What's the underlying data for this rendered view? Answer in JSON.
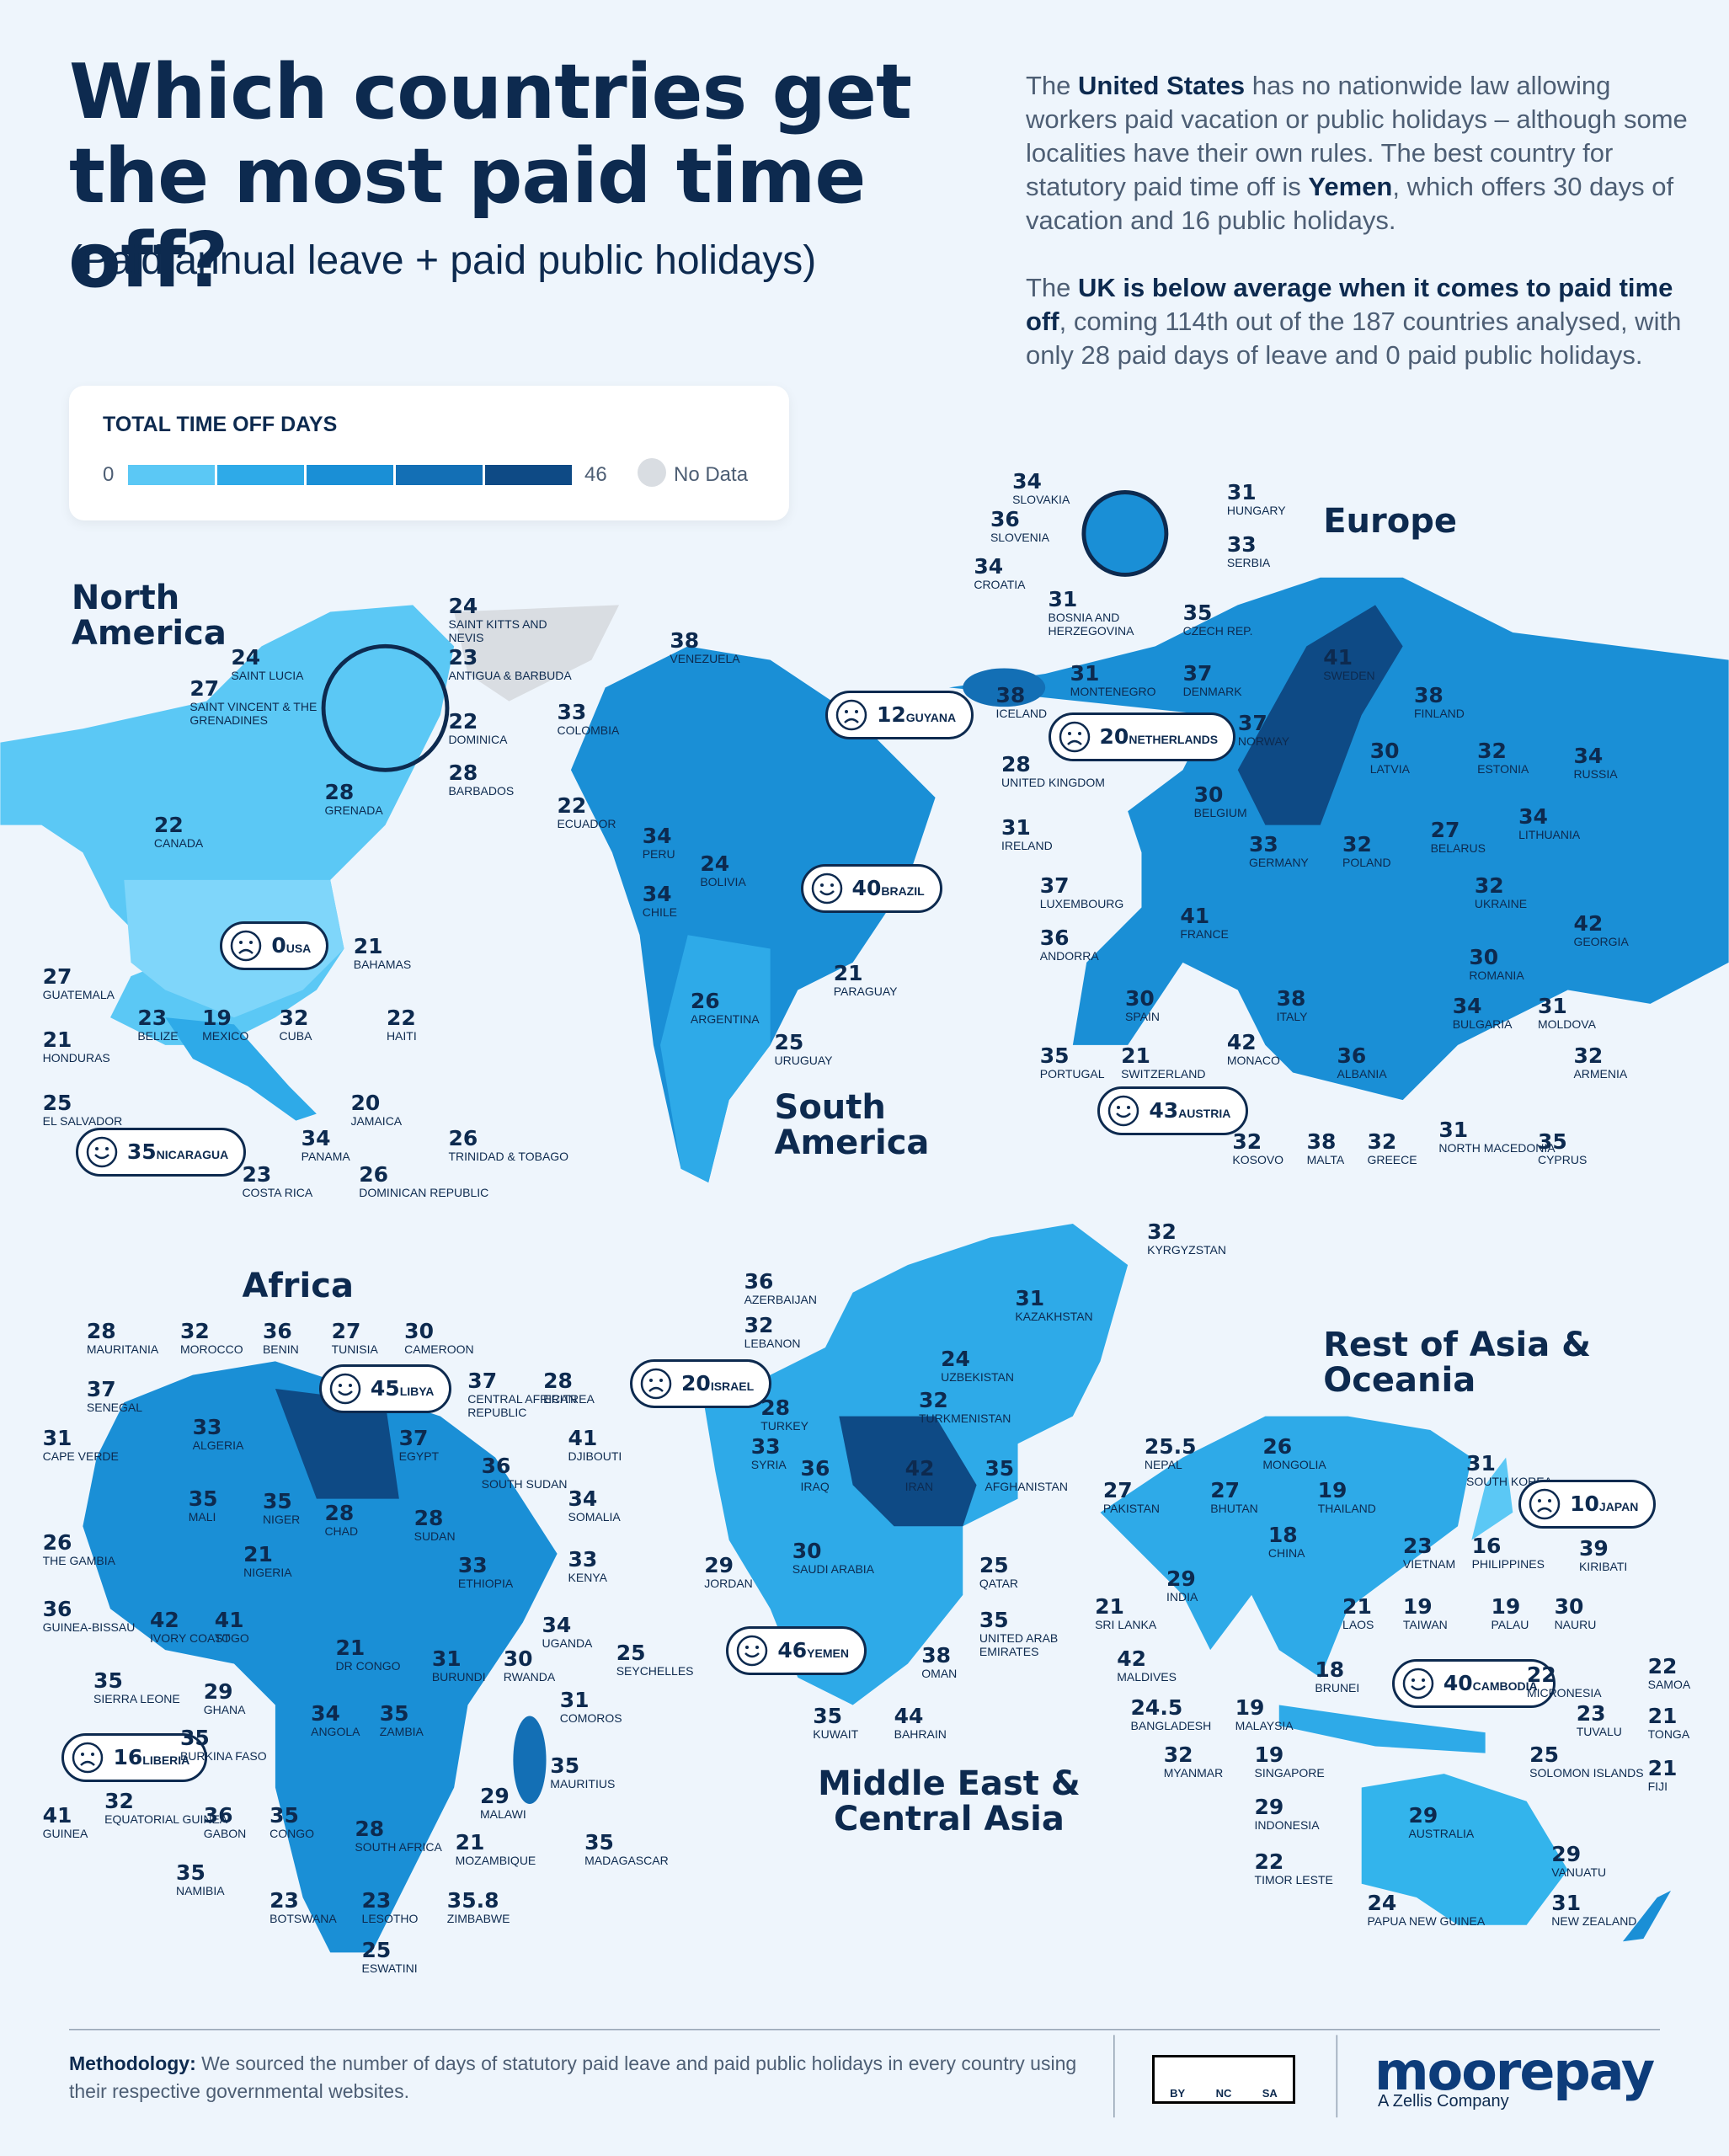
{
  "header": {
    "title": "Which countries get the most paid time off?",
    "subtitle": "(Paid annual leave + paid public holidays)"
  },
  "intro": [
    [
      {
        "text": "The "
      },
      {
        "text": "United States",
        "bold": true
      },
      {
        "text": " has no nationwide law allowing workers paid vacation or public holidays – although some localities have their own rules. The best country for statutory paid time off is "
      },
      {
        "text": "Yemen",
        "bold": true
      },
      {
        "text": ", which offers 30 days of vacation and 16 public holidays."
      }
    ],
    [
      {
        "text": "The "
      },
      {
        "text": "UK is below average when it comes to paid time off",
        "bold": true
      },
      {
        "text": ", coming 114th out of the 187 countries analysed, with only 28 paid days of leave and 0 paid public holidays."
      }
    ]
  ],
  "legend": {
    "title": "TOTAL TIME OFF DAYS",
    "min": 0,
    "max": 46,
    "colors": [
      "#5bc8f5",
      "#2eaae8",
      "#1a8fd6",
      "#136fb5",
      "#0e4a85"
    ],
    "no_data": "No Data"
  },
  "regions": [
    {
      "name": "North America",
      "countries": [
        {
          "value": 24,
          "name": "SAINT KITTS AND NEVIS"
        },
        {
          "value": 23,
          "name": "ANTIGUA & BARBUDA"
        },
        {
          "value": 24,
          "name": "SAINT LUCIA"
        },
        {
          "value": 27,
          "name": "SAINT VINCENT & THE GRENADINES"
        },
        {
          "value": 22,
          "name": "DOMINICA"
        },
        {
          "value": 28,
          "name": "BARBADOS"
        },
        {
          "value": 28,
          "name": "GRENADA"
        },
        {
          "value": 22,
          "name": "CANADA"
        },
        {
          "value": 0,
          "name": "USA",
          "badge": "sad"
        },
        {
          "value": 21,
          "name": "BAHAMAS"
        },
        {
          "value": 27,
          "name": "GUATEMALA"
        },
        {
          "value": 23,
          "name": "BELIZE"
        },
        {
          "value": 19,
          "name": "MEXICO"
        },
        {
          "value": 32,
          "name": "CUBA"
        },
        {
          "value": 22,
          "name": "HAITI"
        },
        {
          "value": 21,
          "name": "HONDURAS"
        },
        {
          "value": 25,
          "name": "EL SALVADOR"
        },
        {
          "value": 20,
          "name": "JAMAICA"
        },
        {
          "value": 34,
          "name": "PANAMA"
        },
        {
          "value": 26,
          "name": "TRINIDAD & TOBAGO"
        },
        {
          "value": 35,
          "name": "NICARAGUA",
          "badge": "happy"
        },
        {
          "value": 23,
          "name": "COSTA RICA"
        },
        {
          "value": 26,
          "name": "DOMINICAN REPUBLIC"
        }
      ]
    },
    {
      "name": "South America",
      "countries": [
        {
          "value": 38,
          "name": "VENEZUELA"
        },
        {
          "value": 33,
          "name": "COLOMBIA"
        },
        {
          "value": 12,
          "name": "GUYANA",
          "badge": "sad"
        },
        {
          "value": 22,
          "name": "ECUADOR"
        },
        {
          "value": 34,
          "name": "PERU"
        },
        {
          "value": 24,
          "name": "BOLIVIA"
        },
        {
          "value": 40,
          "name": "BRAZIL",
          "badge": "happy"
        },
        {
          "value": 34,
          "name": "CHILE"
        },
        {
          "value": 21,
          "name": "PARAGUAY"
        },
        {
          "value": 26,
          "name": "ARGENTINA"
        },
        {
          "value": 25,
          "name": "URUGUAY"
        }
      ]
    },
    {
      "name": "Europe",
      "countries": [
        {
          "value": 34,
          "name": "SLOVAKIA"
        },
        {
          "value": 36,
          "name": "SLOVENIA"
        },
        {
          "value": 34,
          "name": "CROATIA"
        },
        {
          "value": 31,
          "name": "BOSNIA AND HERZEGOVINA"
        },
        {
          "value": 31,
          "name": "HUNGARY"
        },
        {
          "value": 33,
          "name": "SERBIA"
        },
        {
          "value": 35,
          "name": "CZECH REP."
        },
        {
          "value": 31,
          "name": "MONTENEGRO"
        },
        {
          "value": 37,
          "name": "DENMARK"
        },
        {
          "value": 41,
          "name": "SWEDEN"
        },
        {
          "value": 38,
          "name": "FINLAND"
        },
        {
          "value": 38,
          "name": "ICELAND"
        },
        {
          "value": 20,
          "name": "NETHERLANDS",
          "badge": "sad"
        },
        {
          "value": 37,
          "name": "NORWAY"
        },
        {
          "value": 30,
          "name": "LATVIA"
        },
        {
          "value": 32,
          "name": "ESTONIA"
        },
        {
          "value": 34,
          "name": "RUSSIA"
        },
        {
          "value": 28,
          "name": "UNITED KINGDOM"
        },
        {
          "value": 30,
          "name": "BELGIUM"
        },
        {
          "value": 31,
          "name": "IRELAND"
        },
        {
          "value": 33,
          "name": "GERMANY"
        },
        {
          "value": 32,
          "name": "POLAND"
        },
        {
          "value": 27,
          "name": "BELARUS"
        },
        {
          "value": 34,
          "name": "LITHUANIA"
        },
        {
          "value": 37,
          "name": "LUXEMBOURG"
        },
        {
          "value": 32,
          "name": "UKRAINE"
        },
        {
          "value": 41,
          "name": "FRANCE"
        },
        {
          "value": 42,
          "name": "GEORGIA"
        },
        {
          "value": 36,
          "name": "ANDORRA"
        },
        {
          "value": 30,
          "name": "ROMANIA"
        },
        {
          "value": 30,
          "name": "SPAIN"
        },
        {
          "value": 38,
          "name": "ITALY"
        },
        {
          "value": 34,
          "name": "BULGARIA"
        },
        {
          "value": 31,
          "name": "MOLDOVA"
        },
        {
          "value": 42,
          "name": "MONACO"
        },
        {
          "value": 35,
          "name": "PORTUGAL"
        },
        {
          "value": 21,
          "name": "SWITZERLAND"
        },
        {
          "value": 36,
          "name": "ALBANIA"
        },
        {
          "value": 32,
          "name": "ARMENIA"
        },
        {
          "value": 43,
          "name": "AUSTRIA",
          "badge": "happy"
        },
        {
          "value": 31,
          "name": "NORTH MACEDONIA"
        },
        {
          "value": 32,
          "name": "KOSOVO"
        },
        {
          "value": 38,
          "name": "MALTA"
        },
        {
          "value": 32,
          "name": "GREECE"
        },
        {
          "value": 35,
          "name": "CYPRUS"
        }
      ]
    },
    {
      "name": "Africa",
      "countries": [
        {
          "value": 28,
          "name": "MAURITANIA"
        },
        {
          "value": 32,
          "name": "MOROCCO"
        },
        {
          "value": 36,
          "name": "BENIN"
        },
        {
          "value": 27,
          "name": "TUNISIA"
        },
        {
          "value": 30,
          "name": "CAMEROON"
        },
        {
          "value": 37,
          "name": "SENEGAL"
        },
        {
          "value": 45,
          "name": "LIBYA",
          "badge": "happy"
        },
        {
          "value": 37,
          "name": "CENTRAL AFRICAN REPUBLIC"
        },
        {
          "value": 28,
          "name": "ERITREA"
        },
        {
          "value": 33,
          "name": "ALGERIA"
        },
        {
          "value": 31,
          "name": "CAPE VERDE"
        },
        {
          "value": 37,
          "name": "EGYPT"
        },
        {
          "value": 41,
          "name": "DJIBOUTI"
        },
        {
          "value": 36,
          "name": "SOUTH SUDAN"
        },
        {
          "value": 35,
          "name": "MALI"
        },
        {
          "value": 35,
          "name": "NIGER"
        },
        {
          "value": 34,
          "name": "SOMALIA"
        },
        {
          "value": 28,
          "name": "CHAD"
        },
        {
          "value": 28,
          "name": "SUDAN"
        },
        {
          "value": 26,
          "name": "THE GAMBIA"
        },
        {
          "value": 21,
          "name": "NIGERIA"
        },
        {
          "value": 33,
          "name": "KENYA"
        },
        {
          "value": 33,
          "name": "ETHIOPIA"
        },
        {
          "value": 36,
          "name": "GUINEA-BISSAU"
        },
        {
          "value": 42,
          "name": "IVORY COAST"
        },
        {
          "value": 41,
          "name": "TOGO"
        },
        {
          "value": 34,
          "name": "UGANDA"
        },
        {
          "value": 21,
          "name": "DR CONGO"
        },
        {
          "value": 31,
          "name": "BURUNDI"
        },
        {
          "value": 30,
          "name": "RWANDA"
        },
        {
          "value": 25,
          "name": "SEYCHELLES"
        },
        {
          "value": 35,
          "name": "SIERRA LEONE"
        },
        {
          "value": 29,
          "name": "GHANA"
        },
        {
          "value": 31,
          "name": "COMOROS"
        },
        {
          "value": 34,
          "name": "ANGOLA"
        },
        {
          "value": 35,
          "name": "ZAMBIA"
        },
        {
          "value": 16,
          "name": "LIBERIA",
          "badge": "sad"
        },
        {
          "value": 35,
          "name": "BURKINA FASO"
        },
        {
          "value": 35,
          "name": "MAURITIUS"
        },
        {
          "value": 29,
          "name": "MALAWI"
        },
        {
          "value": 41,
          "name": "GUINEA"
        },
        {
          "value": 32,
          "name": "EQUATORIAL GUINEA"
        },
        {
          "value": 36,
          "name": "GABON"
        },
        {
          "value": 35,
          "name": "CONGO"
        },
        {
          "value": 28,
          "name": "SOUTH AFRICA"
        },
        {
          "value": 21,
          "name": "MOZAMBIQUE"
        },
        {
          "value": 35,
          "name": "MADAGASCAR"
        },
        {
          "value": 35,
          "name": "NAMIBIA"
        },
        {
          "value": 23,
          "name": "BOTSWANA"
        },
        {
          "value": 23,
          "name": "LESOTHO"
        },
        {
          "value": 35.8,
          "name": "ZIMBABWE"
        },
        {
          "value": 25,
          "name": "ESWATINI"
        }
      ]
    },
    {
      "name": "Middle East & Central Asia",
      "countries": [
        {
          "value": 32,
          "name": "KYRGYZSTAN"
        },
        {
          "value": 36,
          "name": "AZERBAIJAN"
        },
        {
          "value": 31,
          "name": "KAZAKHSTAN"
        },
        {
          "value": 32,
          "name": "LEBANON"
        },
        {
          "value": 24,
          "name": "UZBEKISTAN"
        },
        {
          "value": 20,
          "name": "ISRAEL",
          "badge": "sad"
        },
        {
          "value": 28,
          "name": "TURKEY"
        },
        {
          "value": 32,
          "name": "TURKMENISTAN"
        },
        {
          "value": 33,
          "name": "SYRIA"
        },
        {
          "value": 36,
          "name": "IRAQ"
        },
        {
          "value": 42,
          "name": "IRAN"
        },
        {
          "value": 35,
          "name": "AFGHANISTAN"
        },
        {
          "value": 30,
          "name": "SAUDI ARABIA"
        },
        {
          "value": 29,
          "name": "JORDAN"
        },
        {
          "value": 25,
          "name": "QATAR"
        },
        {
          "value": 35,
          "name": "UNITED ARAB EMIRATES"
        },
        {
          "value": 46,
          "name": "YEMEN",
          "badge": "happy"
        },
        {
          "value": 38,
          "name": "OMAN"
        },
        {
          "value": 35,
          "name": "KUWAIT"
        },
        {
          "value": 44,
          "name": "BAHRAIN"
        }
      ]
    },
    {
      "name": "Rest of Asia & Oceania",
      "countries": [
        {
          "value": 31,
          "name": "SOUTH KOREA"
        },
        {
          "value": 25.5,
          "name": "NEPAL"
        },
        {
          "value": 26,
          "name": "MONGOLIA"
        },
        {
          "value": 27,
          "name": "PAKISTAN"
        },
        {
          "value": 27,
          "name": "BHUTAN"
        },
        {
          "value": 19,
          "name": "THAILAND"
        },
        {
          "value": 10,
          "name": "JAPAN",
          "badge": "sad"
        },
        {
          "value": 18,
          "name": "CHINA"
        },
        {
          "value": 23,
          "name": "VIETNAM"
        },
        {
          "value": 16,
          "name": "PHILIPPINES"
        },
        {
          "value": 39,
          "name": "KIRIBATI"
        },
        {
          "value": 29,
          "name": "INDIA"
        },
        {
          "value": 21,
          "name": "SRI LANKA"
        },
        {
          "value": 21,
          "name": "LAOS"
        },
        {
          "value": 19,
          "name": "TAIWAN"
        },
        {
          "value": 19,
          "name": "PALAU"
        },
        {
          "value": 30,
          "name": "NAURU"
        },
        {
          "value": 42,
          "name": "MALDIVES"
        },
        {
          "value": 18,
          "name": "BRUNEI"
        },
        {
          "value": 40,
          "name": "CAMBODIA",
          "badge": "happy"
        },
        {
          "value": 22,
          "name": "MICRONESIA"
        },
        {
          "value": 22,
          "name": "SAMOA"
        },
        {
          "value": 24.5,
          "name": "BANGLADESH"
        },
        {
          "value": 19,
          "name": "MALAYSIA"
        },
        {
          "value": 23,
          "name": "TUVALU"
        },
        {
          "value": 21,
          "name": "TONGA"
        },
        {
          "value": 32,
          "name": "MYANMAR"
        },
        {
          "value": 19,
          "name": "SINGAPORE"
        },
        {
          "value": 25,
          "name": "SOLOMON ISLANDS"
        },
        {
          "value": 21,
          "name": "FIJI"
        },
        {
          "value": 29,
          "name": "INDONESIA"
        },
        {
          "value": 29,
          "name": "AUSTRALIA"
        },
        {
          "value": 29,
          "name": "VANUATU"
        },
        {
          "value": 22,
          "name": "TIMOR LESTE"
        },
        {
          "value": 24,
          "name": "PAPUA NEW GUINEA"
        },
        {
          "value": 31,
          "name": "NEW ZEALAND"
        }
      ]
    }
  ],
  "footer": {
    "methodology_label": "Methodology:",
    "methodology": "We sourced the number of days of statutory paid leave and paid public holidays in every country using their respective governmental websites.",
    "license": [
      "BY",
      "NC",
      "SA"
    ],
    "brand": "moorepay",
    "brand_tagline": "A Zellis Company"
  }
}
